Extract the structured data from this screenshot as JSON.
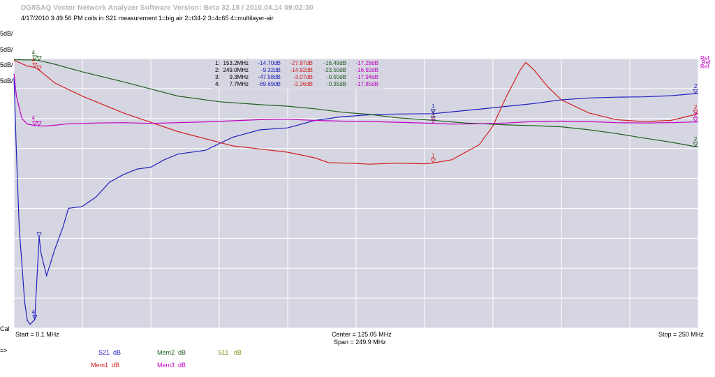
{
  "header": {
    "title": "DG8SAQ Vector Network Analyzer Software   Version:  Beta 32.18 / 2010.04.14 09:02:30",
    "subtitle": "4/17/2010    3:49:56 PM    coils in S21 measurement 1=big air 2=t34-2 3=4c65 4=multilayer-air"
  },
  "left_labels": [
    {
      "text": "5dB/",
      "color": "#2020c0"
    },
    {
      "text": "5dB/",
      "color": "#d02020"
    },
    {
      "text": "5dB/",
      "color": "#206020"
    },
    {
      "text": "5dB/",
      "color": "#c000c0"
    }
  ],
  "right_labels": [
    "Ref",
    "Ref",
    "Ref"
  ],
  "cal_label": "Cal",
  "arrow_label": "=>",
  "markers_table": {
    "rows": [
      {
        "id": "1:",
        "freq": "153.2MHz",
        "s21": "-14.70dB",
        "mem1": "-27.87dB",
        "mem2": "-16.49dB",
        "mem3": "-17.28dB"
      },
      {
        "id": "2:",
        "freq": "249.0MHz",
        "s21": "-9.32dB",
        "mem1": "-14.92dB",
        "mem2": "-23.50dB",
        "mem3": "-16.92dB"
      },
      {
        "id": "3:",
        "freq": "9.3MHz",
        "s21": "-47.58dB",
        "mem1": "-3.07dB",
        "mem2": "-0.50dB",
        "mem3": "-17.94dB"
      },
      {
        "id": "4:",
        "freq": "7.7MHz",
        "s21": "-69.69dB",
        "mem1": "-2.36dB",
        "mem2": "-0.35dB",
        "mem3": "-17.85dB"
      }
    ]
  },
  "axis": {
    "start": "Start = 0.1 MHz",
    "center": "Center = 125.05 MHz",
    "span": "Span = 249.9 MHz",
    "stop": "Stop = 250 MHz"
  },
  "legend": [
    {
      "trace": "S21",
      "unit": "dB",
      "color": "#2020c0"
    },
    {
      "trace": "Mem1",
      "unit": "dB",
      "color": "#d02020"
    },
    {
      "trace": "Mem2",
      "unit": "dB",
      "color": "#206020"
    },
    {
      "trace": "Mem3",
      "unit": "dB",
      "color": "#c000c0"
    },
    {
      "trace": "S11",
      "unit": "dB",
      "color": "#909020"
    }
  ],
  "chart_data": {
    "type": "line",
    "xlim": [
      0.1,
      250
    ],
    "grid": true,
    "series": [
      {
        "name": "S21",
        "color": "#2020c0",
        "x": [
          0.1,
          1,
          2,
          4,
          5,
          6,
          7.7,
          9.3,
          10,
          12,
          15,
          18,
          20,
          25,
          30,
          35,
          40,
          45,
          50,
          55,
          60,
          70,
          80,
          90,
          100,
          110,
          120,
          130,
          140,
          153.2,
          170,
          190,
          200,
          210,
          220,
          230,
          240,
          249,
          250
        ],
        "y": [
          -5,
          -25,
          -45,
          -65,
          -70,
          -71,
          -69.69,
          -47.58,
          -52,
          -58,
          -51,
          -45,
          -40,
          -39.5,
          -37,
          -33,
          -31,
          -29.5,
          -29,
          -27,
          -25.5,
          -24.5,
          -21,
          -19,
          -18.5,
          -16.5,
          -15.5,
          -15,
          -14.8,
          -14.7,
          -13.5,
          -12,
          -11,
          -10.5,
          -10.3,
          -10.2,
          -9.9,
          -9.32,
          -9.2
        ]
      },
      {
        "name": "Mem1",
        "color": "#d02020",
        "x": [
          0.1,
          2,
          5,
          7.7,
          9.3,
          15,
          25,
          40,
          60,
          80,
          100,
          110,
          115,
          125,
          130,
          140,
          150,
          153.2,
          160,
          170,
          175,
          180,
          185,
          187,
          190,
          195,
          200,
          210,
          220,
          230,
          240,
          249,
          250
        ],
        "y": [
          -0.5,
          -1,
          -2,
          -2.36,
          -3.07,
          -6.5,
          -10,
          -14.5,
          -19.5,
          -23.3,
          -25,
          -26.5,
          -27.8,
          -28,
          -28.2,
          -27.9,
          -28.1,
          -27.87,
          -27,
          -23,
          -18,
          -10,
          -3,
          -1,
          -3,
          -7.5,
          -11,
          -14.5,
          -16.3,
          -16.8,
          -16.5,
          -14.92,
          -14.6
        ]
      },
      {
        "name": "Mem2",
        "color": "#206020",
        "x": [
          0.1,
          2,
          5,
          7.7,
          9.3,
          15,
          25,
          40,
          60,
          75,
          90,
          100,
          110,
          120,
          130,
          140,
          153.2,
          165,
          180,
          190,
          200,
          210,
          220,
          230,
          240,
          249,
          250
        ],
        "y": [
          -0.3,
          -0.3,
          -0.35,
          -0.35,
          -0.5,
          -1.5,
          -3.5,
          -6.2,
          -10,
          -11.5,
          -12.3,
          -12.7,
          -13.4,
          -14.3,
          -14.9,
          -15.8,
          -16.49,
          -17.2,
          -17.7,
          -17.9,
          -18.2,
          -19,
          -20,
          -21.2,
          -22.3,
          -23.5,
          -23.6
        ]
      },
      {
        "name": "Mem3",
        "color": "#c000c0",
        "x": [
          0.1,
          1,
          3,
          5,
          7.7,
          9.3,
          12,
          15,
          20,
          30,
          40,
          50,
          60,
          70,
          80,
          90,
          100,
          110,
          120,
          130,
          140,
          153.2,
          160,
          170,
          180,
          190,
          200,
          210,
          220,
          230,
          240,
          249,
          250
        ],
        "y": [
          -4,
          -10,
          -16,
          -17.5,
          -17.85,
          -17.94,
          -18,
          -17.8,
          -17.4,
          -17.2,
          -17.1,
          -17.3,
          -17.1,
          -16.9,
          -16.6,
          -16.3,
          -16.2,
          -16.5,
          -16.7,
          -16.8,
          -17,
          -17.28,
          -17.5,
          -17.4,
          -17.2,
          -16.8,
          -16.7,
          -16.8,
          -17.1,
          -17.2,
          -17.1,
          -16.92,
          -16.9
        ]
      }
    ],
    "markers": [
      {
        "label": "1",
        "x": 153.2
      },
      {
        "label": "2",
        "x": 249.0
      },
      {
        "label": "3",
        "x": 9.3
      },
      {
        "label": "4",
        "x": 7.7
      }
    ]
  }
}
